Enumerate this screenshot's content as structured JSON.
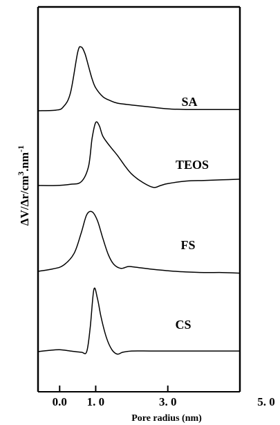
{
  "chart_data": {
    "type": "line",
    "title": "",
    "xlabel": "Pore radius (nm)",
    "ylabel": "ΔV/Δr/cm³.nm⁻¹",
    "ylabel_parts": {
      "base": "ΔV/Δr/cm",
      "exp3": "3",
      "mid": ".nm",
      "exp_neg1": "-1"
    },
    "x_ticks": [
      {
        "value": 0,
        "label": "0.0"
      },
      {
        "value": 1,
        "label": "1. 0"
      },
      {
        "value": 3,
        "label": "3. 0"
      },
      {
        "value": 5,
        "label": "5. 0"
      }
    ],
    "xlim": [
      -0.6,
      5.0
    ],
    "grid": false,
    "legend": "none",
    "series": [
      {
        "name": "SA",
        "x": [
          -0.6,
          -0.1,
          0.1,
          0.3,
          0.5,
          0.6,
          0.7,
          0.8,
          0.9,
          1.0,
          1.2,
          1.4,
          1.6,
          2.0,
          2.5,
          3.0,
          3.5,
          4.0,
          4.5,
          5.0
        ],
        "y": [
          0.0,
          0.01,
          0.06,
          0.28,
          0.92,
          1.0,
          0.9,
          0.7,
          0.5,
          0.36,
          0.22,
          0.16,
          0.12,
          0.09,
          0.06,
          0.03,
          0.02,
          0.02,
          0.02,
          0.02
        ]
      },
      {
        "name": "TEOS",
        "x": [
          -0.6,
          -0.1,
          0.3,
          0.6,
          0.8,
          0.9,
          1.0,
          1.1,
          1.2,
          1.4,
          1.6,
          1.8,
          2.0,
          2.3,
          2.6,
          2.8,
          3.0,
          3.5,
          4.0,
          4.5,
          5.0
        ],
        "y": [
          0.0,
          0.0,
          0.02,
          0.06,
          0.3,
          0.75,
          1.0,
          0.95,
          0.78,
          0.62,
          0.48,
          0.32,
          0.18,
          0.05,
          -0.03,
          0.0,
          0.03,
          0.07,
          0.08,
          0.09,
          0.1
        ]
      },
      {
        "name": "FS",
        "x": [
          -0.6,
          -0.2,
          0.1,
          0.4,
          0.6,
          0.75,
          0.9,
          1.05,
          1.2,
          1.35,
          1.5,
          1.7,
          1.9,
          2.1,
          2.5,
          3.0,
          3.5,
          4.0,
          4.5,
          5.0
        ],
        "y": [
          0.0,
          0.04,
          0.1,
          0.3,
          0.65,
          0.95,
          1.0,
          0.85,
          0.55,
          0.28,
          0.12,
          0.05,
          0.08,
          0.07,
          0.04,
          0.01,
          -0.01,
          -0.02,
          -0.02,
          -0.03
        ]
      },
      {
        "name": "CS",
        "x": [
          -0.6,
          -0.3,
          0.0,
          0.3,
          0.6,
          0.75,
          0.85,
          0.95,
          1.05,
          1.15,
          1.3,
          1.45,
          1.6,
          1.75,
          2.0,
          2.5,
          3.0,
          3.5,
          4.0,
          4.5,
          5.0
        ],
        "y": [
          0.0,
          0.02,
          0.03,
          0.01,
          -0.01,
          0.0,
          0.4,
          1.0,
          0.85,
          0.55,
          0.22,
          0.03,
          -0.04,
          -0.01,
          0.01,
          0.01,
          0.01,
          0.01,
          0.01,
          0.01,
          0.01
        ]
      }
    ]
  }
}
